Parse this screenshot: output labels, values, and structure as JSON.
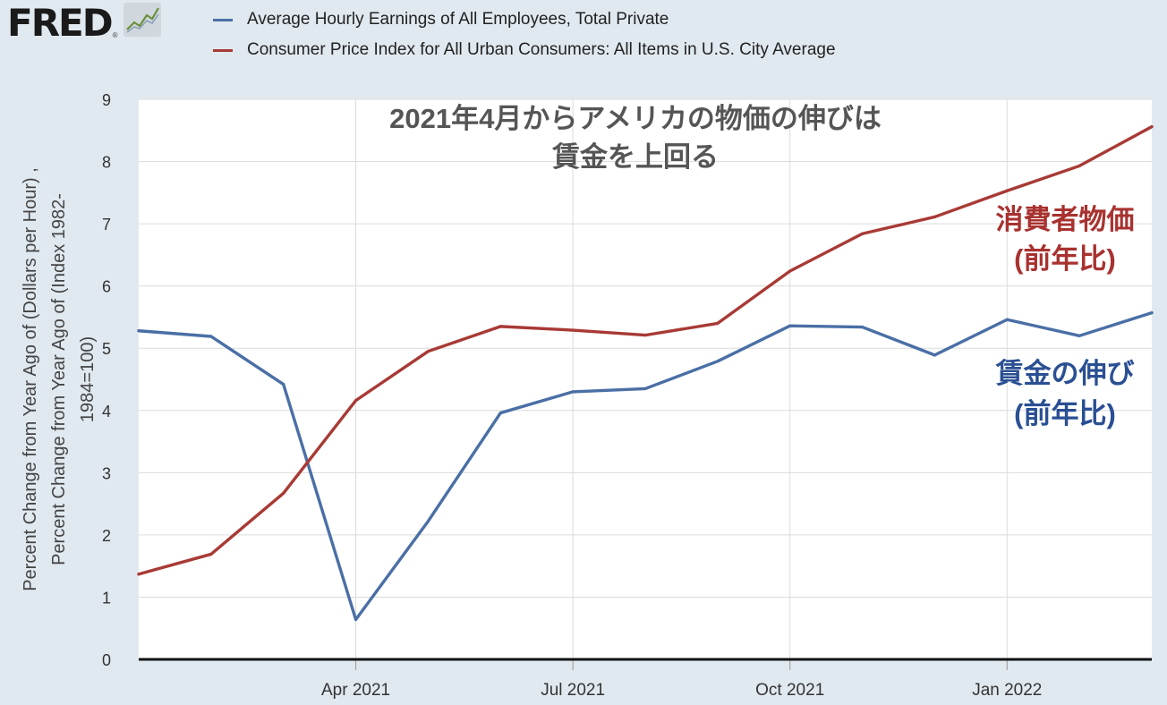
{
  "logo": {
    "text": "FRED",
    "registered": "®",
    "icon": "line-chart-icon"
  },
  "legend": [
    {
      "label": "Average Hourly Earnings of All Employees, Total Private",
      "color": "#4a6fa5"
    },
    {
      "label": "Consumer Price Index for All Urban Consumers: All Items in U.S. City Average",
      "color": "#a83a35"
    }
  ],
  "annotations": {
    "title_line1": "2021年4月からアメリカの物価の伸びは",
    "title_line2": "賃金を上回る",
    "cpi_line1": "消費者物価",
    "cpi_line2": "(前年比)",
    "wage_line1": "賃金の伸び",
    "wage_line2": "(前年比)"
  },
  "chart_data": {
    "type": "line",
    "ylabel_lines": [
      "Percent Change from Year Ago of (Dollars per Hour) ,",
      "Percent Change from Year Ago of (Index 1982-",
      "1984=100)"
    ],
    "ylim": [
      0,
      9
    ],
    "yticks": [
      0,
      1,
      2,
      3,
      4,
      5,
      6,
      7,
      8,
      9
    ],
    "grid": true,
    "x": [
      "2021-01",
      "2021-02",
      "2021-03",
      "2021-04",
      "2021-05",
      "2021-06",
      "2021-07",
      "2021-08",
      "2021-09",
      "2021-10",
      "2021-11",
      "2021-12",
      "2022-01",
      "2022-02",
      "2022-03"
    ],
    "xticks": [
      {
        "label": "Apr 2021",
        "x": "2021-04"
      },
      {
        "label": "Jul 2021",
        "x": "2021-07"
      },
      {
        "label": "Oct 2021",
        "x": "2021-10"
      },
      {
        "label": "Jan 2022",
        "x": "2022-01"
      }
    ],
    "series": [
      {
        "name": "Average Hourly Earnings of All Employees, Total Private",
        "color": "#4a6fa5",
        "values": [
          5.28,
          5.19,
          4.42,
          0.64,
          2.22,
          3.96,
          4.3,
          4.35,
          4.79,
          5.36,
          5.34,
          4.89,
          5.46,
          5.2,
          5.57
        ]
      },
      {
        "name": "Consumer Price Index for All Urban Consumers: All Items in U.S. City Average",
        "color": "#a83a35",
        "values": [
          1.37,
          1.69,
          2.67,
          4.16,
          4.95,
          5.35,
          5.29,
          5.21,
          5.4,
          6.24,
          6.84,
          7.11,
          7.53,
          7.93,
          8.56
        ]
      }
    ]
  }
}
